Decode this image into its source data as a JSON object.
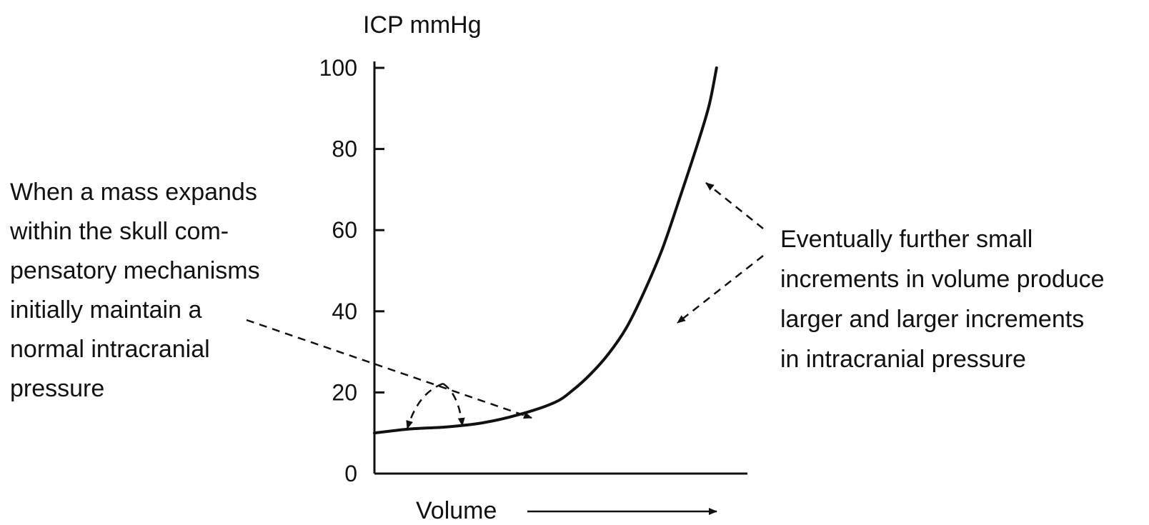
{
  "chart_data": {
    "type": "line",
    "title": "",
    "ylabel": "ICP mmHg",
    "xlabel": "Volume",
    "ylim": [
      0,
      100
    ],
    "yticks": [
      0,
      20,
      40,
      60,
      80,
      100
    ],
    "grid": false,
    "series": [
      {
        "x": [
          0.0,
          0.1,
          0.2,
          0.3,
          0.4,
          0.5,
          0.55,
          0.6,
          0.65,
          0.7,
          0.75,
          0.8,
          0.85,
          0.9,
          0.93,
          0.95
        ],
        "values": [
          10,
          11,
          11.5,
          12.5,
          14.5,
          17.5,
          20.5,
          24.5,
          29.5,
          36,
          45,
          55.5,
          68.5,
          82,
          91,
          100
        ]
      }
    ],
    "annotations": {
      "left": [
        "When a mass expands",
        "within the skull com-",
        "pensatory mechanisms",
        "initially maintain a",
        "normal intracranial",
        "pressure"
      ],
      "right": [
        "Eventually further small",
        "increments in volume produce",
        "larger and larger increments",
        "in intracranial pressure"
      ]
    }
  }
}
